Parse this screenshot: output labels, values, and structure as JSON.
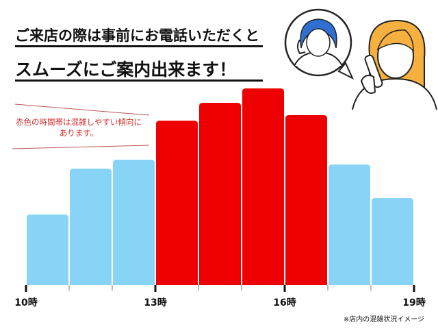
{
  "header": {
    "line1": "ご来店の際は事前にお電話いただくと",
    "line2": "スムーズにご案内出来ます！"
  },
  "note": {
    "line1": "赤色の時間帯は混雑しやすい傾向に",
    "line2": "あります。"
  },
  "footnote": "※店内の混雑状況イメージ",
  "colors": {
    "normal": "#87d4f7",
    "busy": "#ee0000",
    "note": "#d42a2a"
  },
  "chart_data": {
    "type": "bar",
    "categories": [
      "10時",
      "11時",
      "12時",
      "13時",
      "14時",
      "15時",
      "16時",
      "17時",
      "18時"
    ],
    "values": [
      103,
      170,
      183,
      240,
      266,
      287,
      248,
      176,
      127
    ],
    "busy": [
      false,
      false,
      false,
      true,
      true,
      true,
      true,
      false,
      false
    ],
    "tick_labels": [
      "10時",
      "13時",
      "16時",
      "19時"
    ],
    "xlabel": "",
    "ylabel": "",
    "y_axis_shown": false,
    "grid": false
  }
}
